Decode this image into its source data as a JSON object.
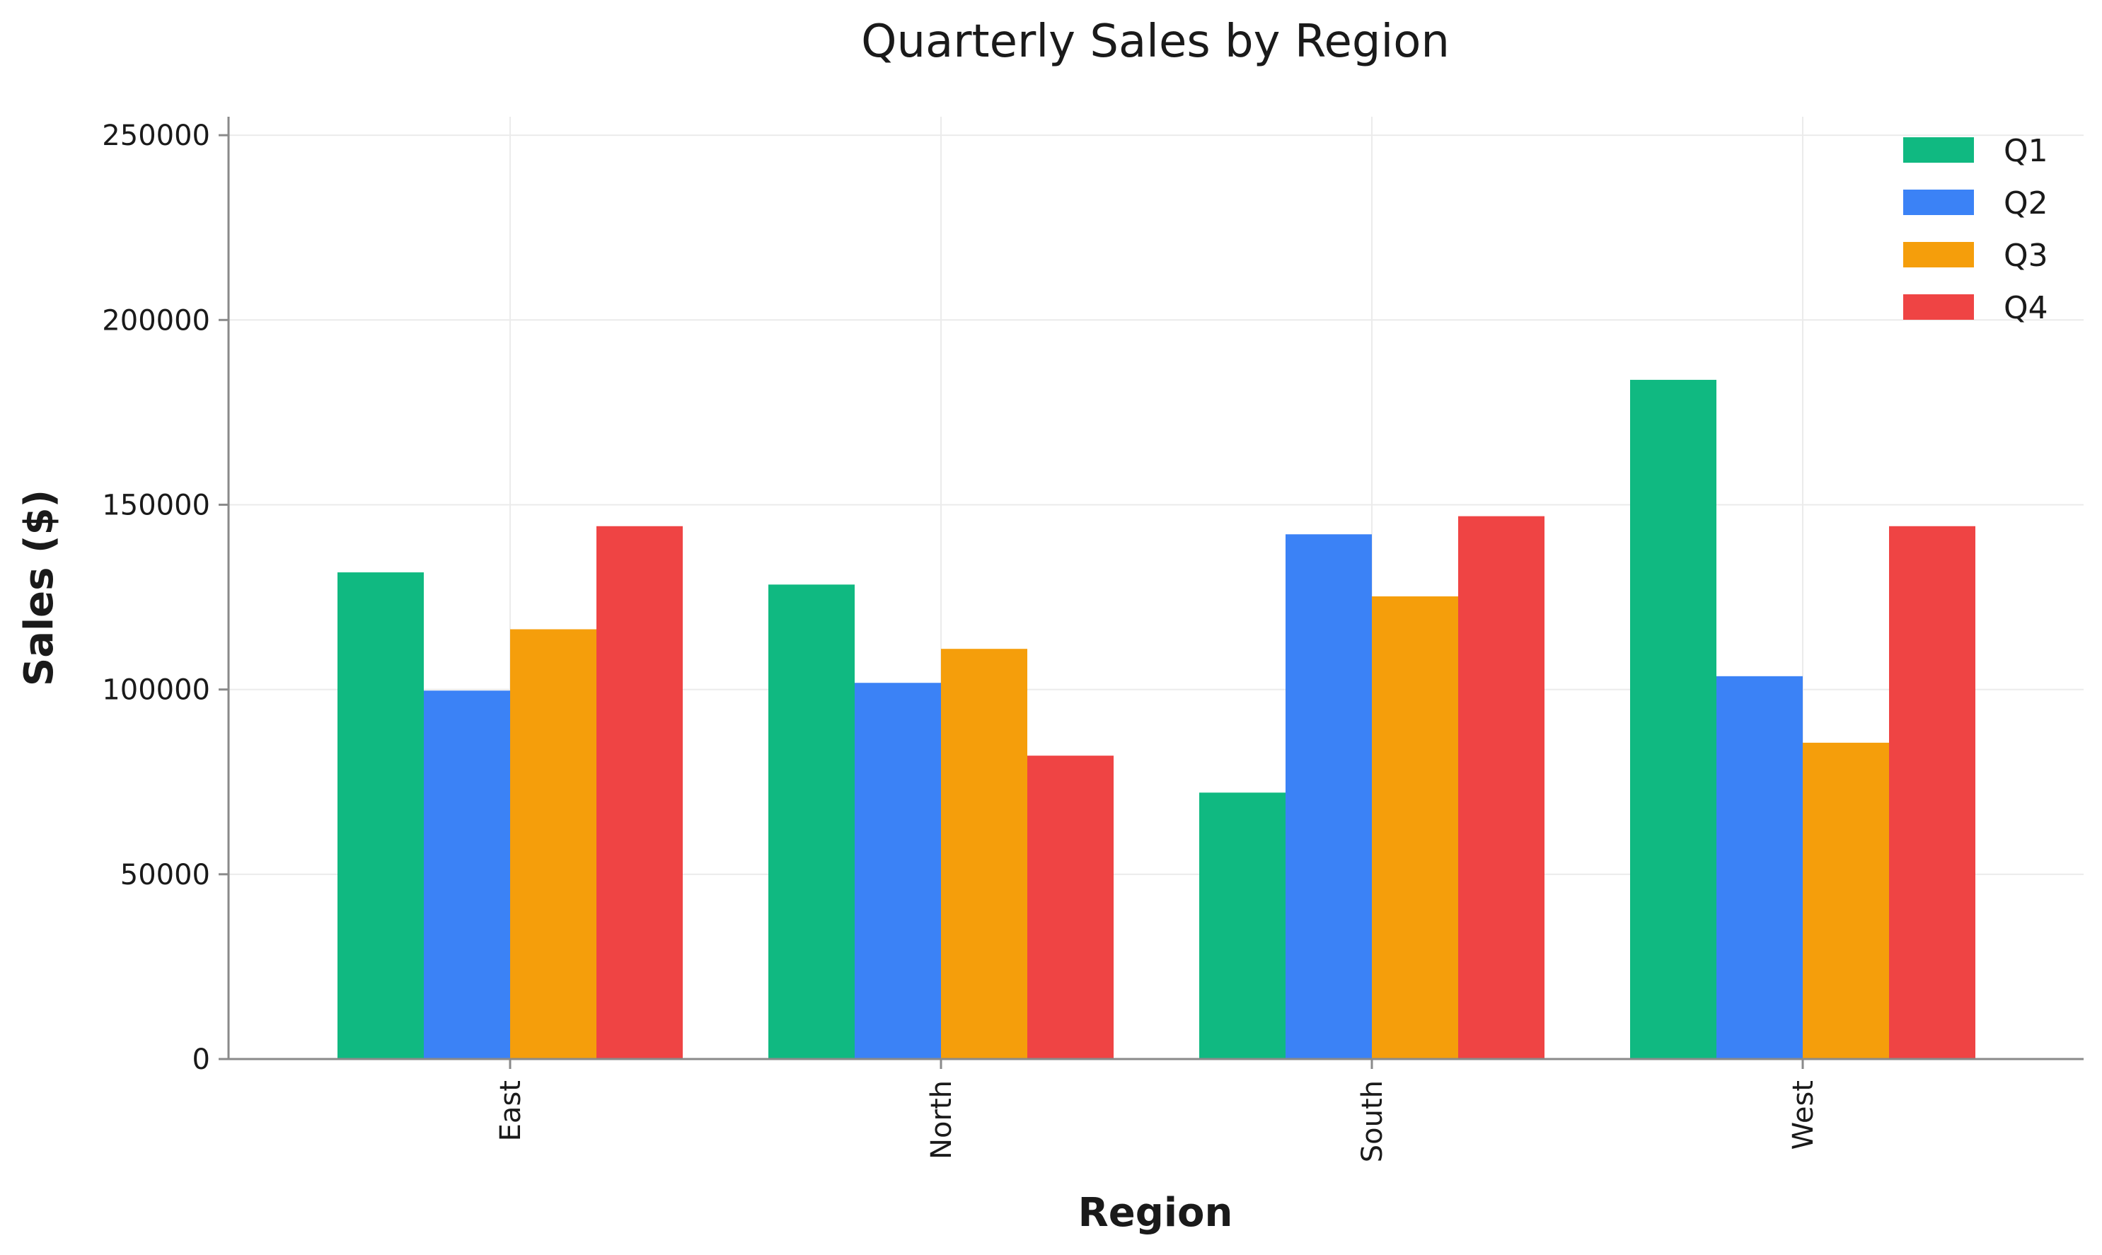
{
  "chart_data": {
    "type": "bar",
    "title": "Quarterly Sales by Region",
    "xlabel": "Region",
    "ylabel": "Sales ($)",
    "categories": [
      "East",
      "North",
      "South",
      "West"
    ],
    "series": [
      {
        "name": "Q1",
        "color": "#10b981",
        "values": [
          131700,
          128400,
          72100,
          183800
        ]
      },
      {
        "name": "Q2",
        "color": "#3b82f6",
        "values": [
          99700,
          101800,
          142000,
          103600
        ]
      },
      {
        "name": "Q3",
        "color": "#f59e0b",
        "values": [
          116300,
          111000,
          125200,
          85600
        ]
      },
      {
        "name": "Q4",
        "color": "#ef4444",
        "values": [
          144200,
          82100,
          146900,
          144200
        ]
      }
    ],
    "ylim": [
      0,
      255000
    ],
    "yticks": [
      0,
      50000,
      100000,
      150000,
      200000,
      250000
    ],
    "ytick_labels": [
      "0",
      "50000",
      "100000",
      "150000",
      "200000",
      "250000"
    ],
    "grid": true,
    "legend_position": "top-right"
  }
}
